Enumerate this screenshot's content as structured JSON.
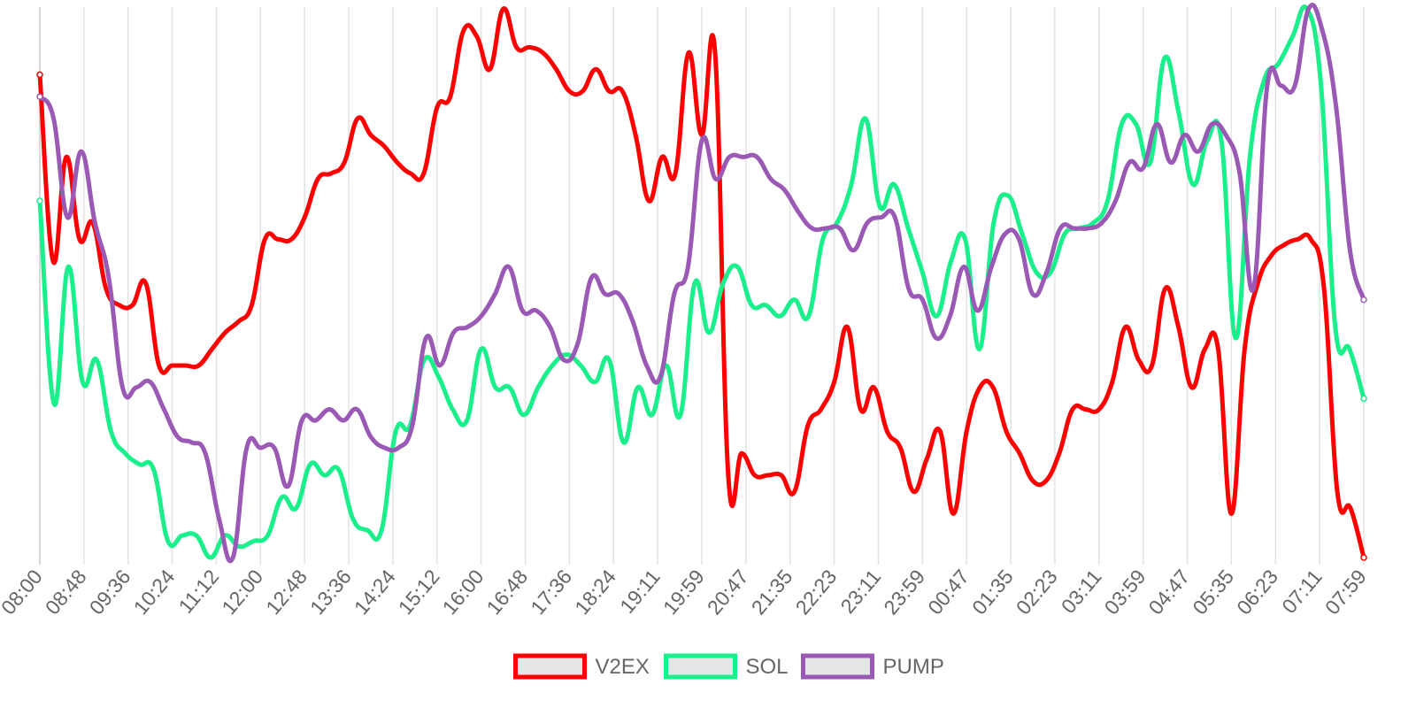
{
  "chart_data": {
    "type": "line",
    "title": "",
    "xlabel": "",
    "ylabel": "",
    "x_ticks": [
      "08:00",
      "08:48",
      "09:36",
      "10:24",
      "11:12",
      "12:00",
      "12:48",
      "13:36",
      "14:24",
      "15:12",
      "16:00",
      "16:48",
      "17:36",
      "18:24",
      "19:11",
      "19:59",
      "20:47",
      "21:35",
      "22:23",
      "23:11",
      "23:59",
      "00:47",
      "01:35",
      "02:23",
      "03:11",
      "03:59",
      "04:47",
      "05:35",
      "06:23",
      "07:11",
      "07:59"
    ],
    "y_axis_labels": "none",
    "ylim": [
      0,
      100
    ],
    "grid": {
      "vertical": true,
      "horizontal": false
    },
    "legend_position": "bottom",
    "series": [
      {
        "name": "V2EX",
        "color": "#ff0000",
        "values": [
          88,
          54,
          73,
          58,
          61,
          49,
          46,
          46,
          50,
          35,
          35,
          35,
          35,
          38,
          41,
          43,
          46,
          58,
          58,
          58,
          62,
          69,
          70,
          72,
          80,
          77,
          75,
          72,
          70,
          70,
          82,
          84,
          96,
          95,
          89,
          100,
          93,
          93,
          92,
          89,
          85,
          85,
          89,
          85,
          85,
          77,
          65,
          73,
          70,
          92,
          77,
          92,
          15,
          19,
          15,
          15,
          15,
          12,
          24,
          27,
          32,
          42,
          27,
          31,
          23,
          20,
          12,
          18,
          23,
          8,
          23,
          31,
          31,
          23,
          19,
          14,
          14,
          19,
          27,
          27,
          27,
          32,
          42,
          36,
          35,
          49,
          42,
          31,
          38,
          38,
          8,
          38,
          50,
          55,
          57,
          58,
          58,
          49,
          12,
          9,
          0
        ]
      },
      {
        "name": "SOL",
        "color": "#19f08c",
        "values": [
          65,
          28,
          53,
          32,
          36,
          23,
          19,
          17,
          16,
          3,
          4,
          4,
          0,
          4,
          2,
          3,
          4,
          11,
          9,
          17,
          15,
          16,
          7,
          5,
          5,
          23,
          24,
          36,
          33,
          27,
          25,
          38,
          31,
          31,
          26,
          31,
          35,
          37,
          35,
          32,
          36,
          21,
          31,
          26,
          35,
          26,
          50,
          41,
          50,
          53,
          46,
          46,
          44,
          47,
          44,
          58,
          61,
          68,
          80,
          64,
          68,
          60,
          52,
          44,
          54,
          58,
          38,
          61,
          66,
          59,
          52,
          52,
          59,
          60,
          61,
          65,
          79,
          79,
          72,
          91,
          81,
          68,
          76,
          76,
          40,
          73,
          87,
          90,
          95,
          100,
          86,
          42,
          38,
          29
        ]
      },
      {
        "name": "PUMP",
        "color": "#9b59b6",
        "values": [
          84,
          80,
          62,
          74,
          61,
          51,
          31,
          31,
          32,
          27,
          22,
          21,
          19,
          7,
          0,
          20,
          20,
          20,
          13,
          25,
          25,
          27,
          25,
          27,
          22,
          20,
          20,
          24,
          40,
          35,
          41,
          42,
          44,
          48,
          53,
          45,
          45,
          42,
          36,
          39,
          51,
          48,
          48,
          43,
          35,
          33,
          48,
          53,
          76,
          69,
          73,
          73,
          73,
          69,
          67,
          63,
          60,
          60,
          60,
          56,
          61,
          62,
          62,
          49,
          47,
          40,
          44,
          53,
          45,
          53,
          59,
          58,
          48,
          52,
          60,
          60,
          60,
          61,
          65,
          72,
          71,
          79,
          72,
          77,
          74,
          79,
          77,
          70,
          49,
          86,
          86,
          86,
          100,
          96,
          82,
          56,
          47
        ]
      }
    ]
  }
}
